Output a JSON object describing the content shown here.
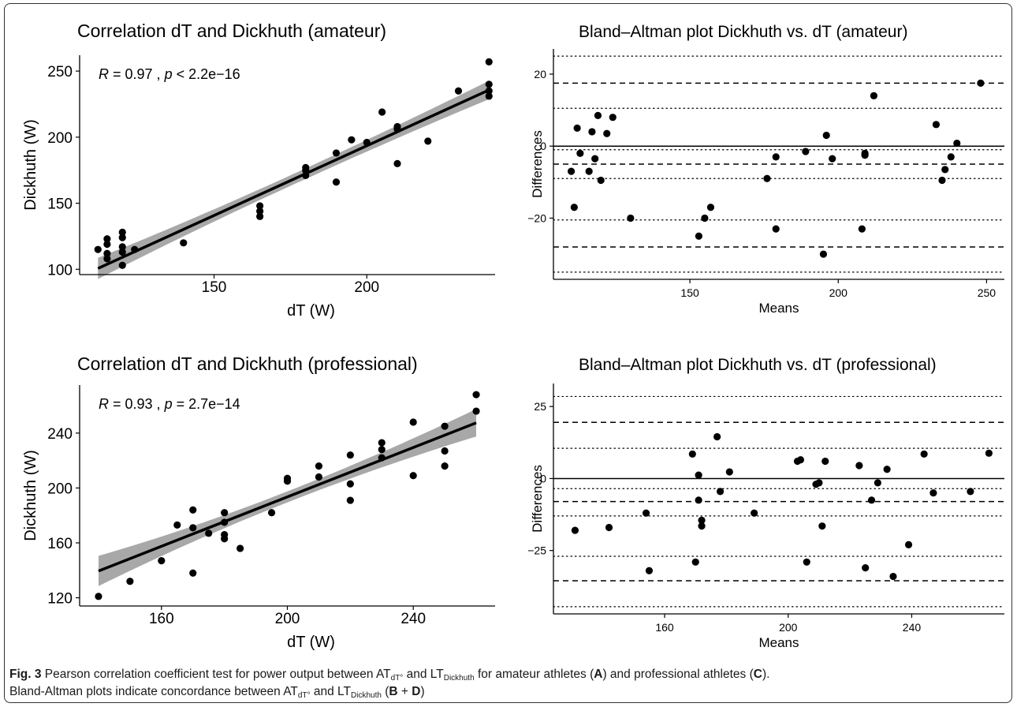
{
  "colors": {
    "point": "#000000",
    "line": "#000000",
    "ci_band": "#999999",
    "axis": "#000000",
    "frame": "#333333"
  },
  "caption": {
    "label": "Fig. 3",
    "text_1": " Pearson correlation coefficient test for power output between AT",
    "sub_1": "dT°",
    "text_2": " and LT",
    "sub_2": "Dickhuth",
    "text_3": " for amateur athletes (",
    "letter_a": "A",
    "text_4": ") and professional athletes (",
    "letter_c": "C",
    "text_5": ").",
    "line2_1": "Bland-Altman plots indicate concordance between AT",
    "sub_3": "dT°",
    "line2_2": " and LT",
    "sub_4": "Dickhuth",
    "line2_3": " (",
    "letter_b": "B",
    "plus": " + ",
    "letter_d": "D",
    "line2_4": ")"
  },
  "chart_data": [
    {
      "id": "A",
      "type": "scatter",
      "title": "Correlation dT and Dickhuth (amateur)",
      "xlabel": "dT (W)",
      "ylabel": "Dickhuth (W)",
      "xlim": [
        106,
        242
      ],
      "ylim": [
        96,
        262
      ],
      "xticks": [
        150,
        200
      ],
      "yticks": [
        100,
        150,
        200,
        250
      ],
      "annotation": {
        "r_sym": "R",
        "r_val": " = 0.97 , ",
        "p_sym": "p",
        "p_val": " < 2.2e−16"
      },
      "regression": {
        "intercept": -17.5,
        "slope": 1.055,
        "x_range": [
          112,
          240
        ],
        "ci_half_low": 8,
        "ci_half_mid": 4,
        "ci_half_high": 7
      },
      "points": [
        [
          112,
          115
        ],
        [
          115,
          112
        ],
        [
          115,
          108
        ],
        [
          115,
          119
        ],
        [
          115,
          123
        ],
        [
          120,
          128
        ],
        [
          120,
          124
        ],
        [
          120,
          117
        ],
        [
          120,
          113
        ],
        [
          120,
          103
        ],
        [
          124,
          115
        ],
        [
          140,
          120
        ],
        [
          165,
          148
        ],
        [
          165,
          144
        ],
        [
          165,
          140
        ],
        [
          180,
          177
        ],
        [
          180,
          175
        ],
        [
          180,
          171
        ],
        [
          190,
          188
        ],
        [
          190,
          166
        ],
        [
          195,
          198
        ],
        [
          200,
          196
        ],
        [
          205,
          219
        ],
        [
          210,
          208
        ],
        [
          210,
          206
        ],
        [
          210,
          180
        ],
        [
          220,
          197
        ],
        [
          230,
          235
        ],
        [
          240,
          257
        ],
        [
          240,
          240
        ],
        [
          240,
          235
        ],
        [
          240,
          231
        ]
      ]
    },
    {
      "id": "B",
      "type": "scatter",
      "title": "Bland–Altman plot Dickhuth vs. dT (amateur)",
      "xlabel": "Means",
      "ylabel": "Differences",
      "xlim": [
        104,
        256
      ],
      "ylim": [
        -37,
        27
      ],
      "xticks": [
        150,
        200,
        250
      ],
      "yticks": [
        -20,
        0,
        20
      ],
      "hlines": {
        "solid": [
          0
        ],
        "dashed": [
          17.5,
          -5,
          -28
        ],
        "dotted": [
          25,
          10.5,
          -1,
          -9,
          -20.5,
          -35
        ]
      },
      "points": [
        [
          110,
          -7
        ],
        [
          111,
          -17
        ],
        [
          112,
          5
        ],
        [
          113,
          -2
        ],
        [
          116,
          -7
        ],
        [
          117,
          4
        ],
        [
          118,
          -3.5
        ],
        [
          119,
          8.5
        ],
        [
          120,
          -9.5
        ],
        [
          122,
          3.5
        ],
        [
          124,
          8
        ],
        [
          130,
          -20
        ],
        [
          153,
          -25
        ],
        [
          155,
          -20
        ],
        [
          157,
          -17
        ],
        [
          176,
          -9
        ],
        [
          179,
          -3
        ],
        [
          179,
          -23
        ],
        [
          189,
          -1.5
        ],
        [
          195,
          -30
        ],
        [
          196,
          3
        ],
        [
          198,
          -3.5
        ],
        [
          208,
          -23
        ],
        [
          209,
          -2.5
        ],
        [
          209,
          -2
        ],
        [
          212,
          14
        ],
        [
          233,
          6
        ],
        [
          235,
          -9.5
        ],
        [
          236,
          -6.5
        ],
        [
          238,
          -3
        ],
        [
          240,
          0.8
        ],
        [
          248,
          17.5
        ]
      ]
    },
    {
      "id": "C",
      "type": "scatter",
      "title": "Correlation dT and Dickhuth (professional)",
      "xlabel": "dT (W)",
      "ylabel": "Dickhuth (W)",
      "xlim": [
        134,
        266
      ],
      "ylim": [
        114,
        275
      ],
      "xticks": [
        160,
        200,
        240
      ],
      "yticks": [
        120,
        160,
        200,
        240
      ],
      "annotation": {
        "r_sym": "R",
        "r_val": " = 0.93 , ",
        "p_sym": "p",
        "p_val": " = 2.7e−14"
      },
      "regression": {
        "intercept": 13.5,
        "slope": 0.9,
        "x_range": [
          140,
          260
        ],
        "ci_half_low": 11,
        "ci_half_mid": 4,
        "ci_half_high": 10
      },
      "points": [
        [
          140,
          121
        ],
        [
          150,
          132
        ],
        [
          160,
          147
        ],
        [
          165,
          173
        ],
        [
          170,
          184
        ],
        [
          170,
          171
        ],
        [
          170,
          138
        ],
        [
          175,
          167
        ],
        [
          180,
          182
        ],
        [
          180,
          175
        ],
        [
          180,
          166
        ],
        [
          180,
          163
        ],
        [
          185,
          156
        ],
        [
          195,
          182
        ],
        [
          200,
          207
        ],
        [
          200,
          205
        ],
        [
          210,
          216
        ],
        [
          210,
          208
        ],
        [
          220,
          224
        ],
        [
          220,
          203
        ],
        [
          220,
          191
        ],
        [
          230,
          233
        ],
        [
          230,
          228
        ],
        [
          230,
          222
        ],
        [
          240,
          248
        ],
        [
          240,
          209
        ],
        [
          250,
          245
        ],
        [
          250,
          227
        ],
        [
          250,
          216
        ],
        [
          260,
          268
        ],
        [
          260,
          256
        ]
      ]
    },
    {
      "id": "D",
      "type": "scatter",
      "title": "Bland–Altman plot Dickhuth vs. dT (professional)",
      "xlabel": "Means",
      "ylabel": "Differences",
      "xlim": [
        124,
        270
      ],
      "ylim": [
        -47,
        33
      ],
      "xticks": [
        160,
        200,
        240
      ],
      "yticks": [
        -25,
        0,
        25
      ],
      "hlines": {
        "solid": [
          0
        ],
        "dashed": [
          19.5,
          -8,
          -35.5
        ],
        "dotted": [
          28.5,
          10.5,
          -3.5,
          -13,
          -27,
          -44.5
        ]
      },
      "points": [
        [
          131,
          -18
        ],
        [
          142,
          -17
        ],
        [
          154,
          -12
        ],
        [
          155,
          -32
        ],
        [
          169,
          8.5
        ],
        [
          170,
          -29
        ],
        [
          171,
          1.2
        ],
        [
          171,
          -7.5
        ],
        [
          172,
          -16.5
        ],
        [
          172,
          -14.5
        ],
        [
          177,
          14.5
        ],
        [
          178,
          -4.5
        ],
        [
          181,
          2.3
        ],
        [
          189,
          -12
        ],
        [
          203,
          6
        ],
        [
          204,
          6.5
        ],
        [
          206,
          -29
        ],
        [
          209,
          -2
        ],
        [
          210,
          -1.5
        ],
        [
          211,
          -16.5
        ],
        [
          212,
          6
        ],
        [
          223,
          4.5
        ],
        [
          225,
          -31
        ],
        [
          227,
          -7.5
        ],
        [
          229,
          -1.5
        ],
        [
          232,
          3.2
        ],
        [
          234,
          -34
        ],
        [
          239,
          -23
        ],
        [
          244,
          8.5
        ],
        [
          247,
          -5
        ],
        [
          259,
          -4.5
        ],
        [
          265,
          8.8
        ]
      ]
    }
  ]
}
